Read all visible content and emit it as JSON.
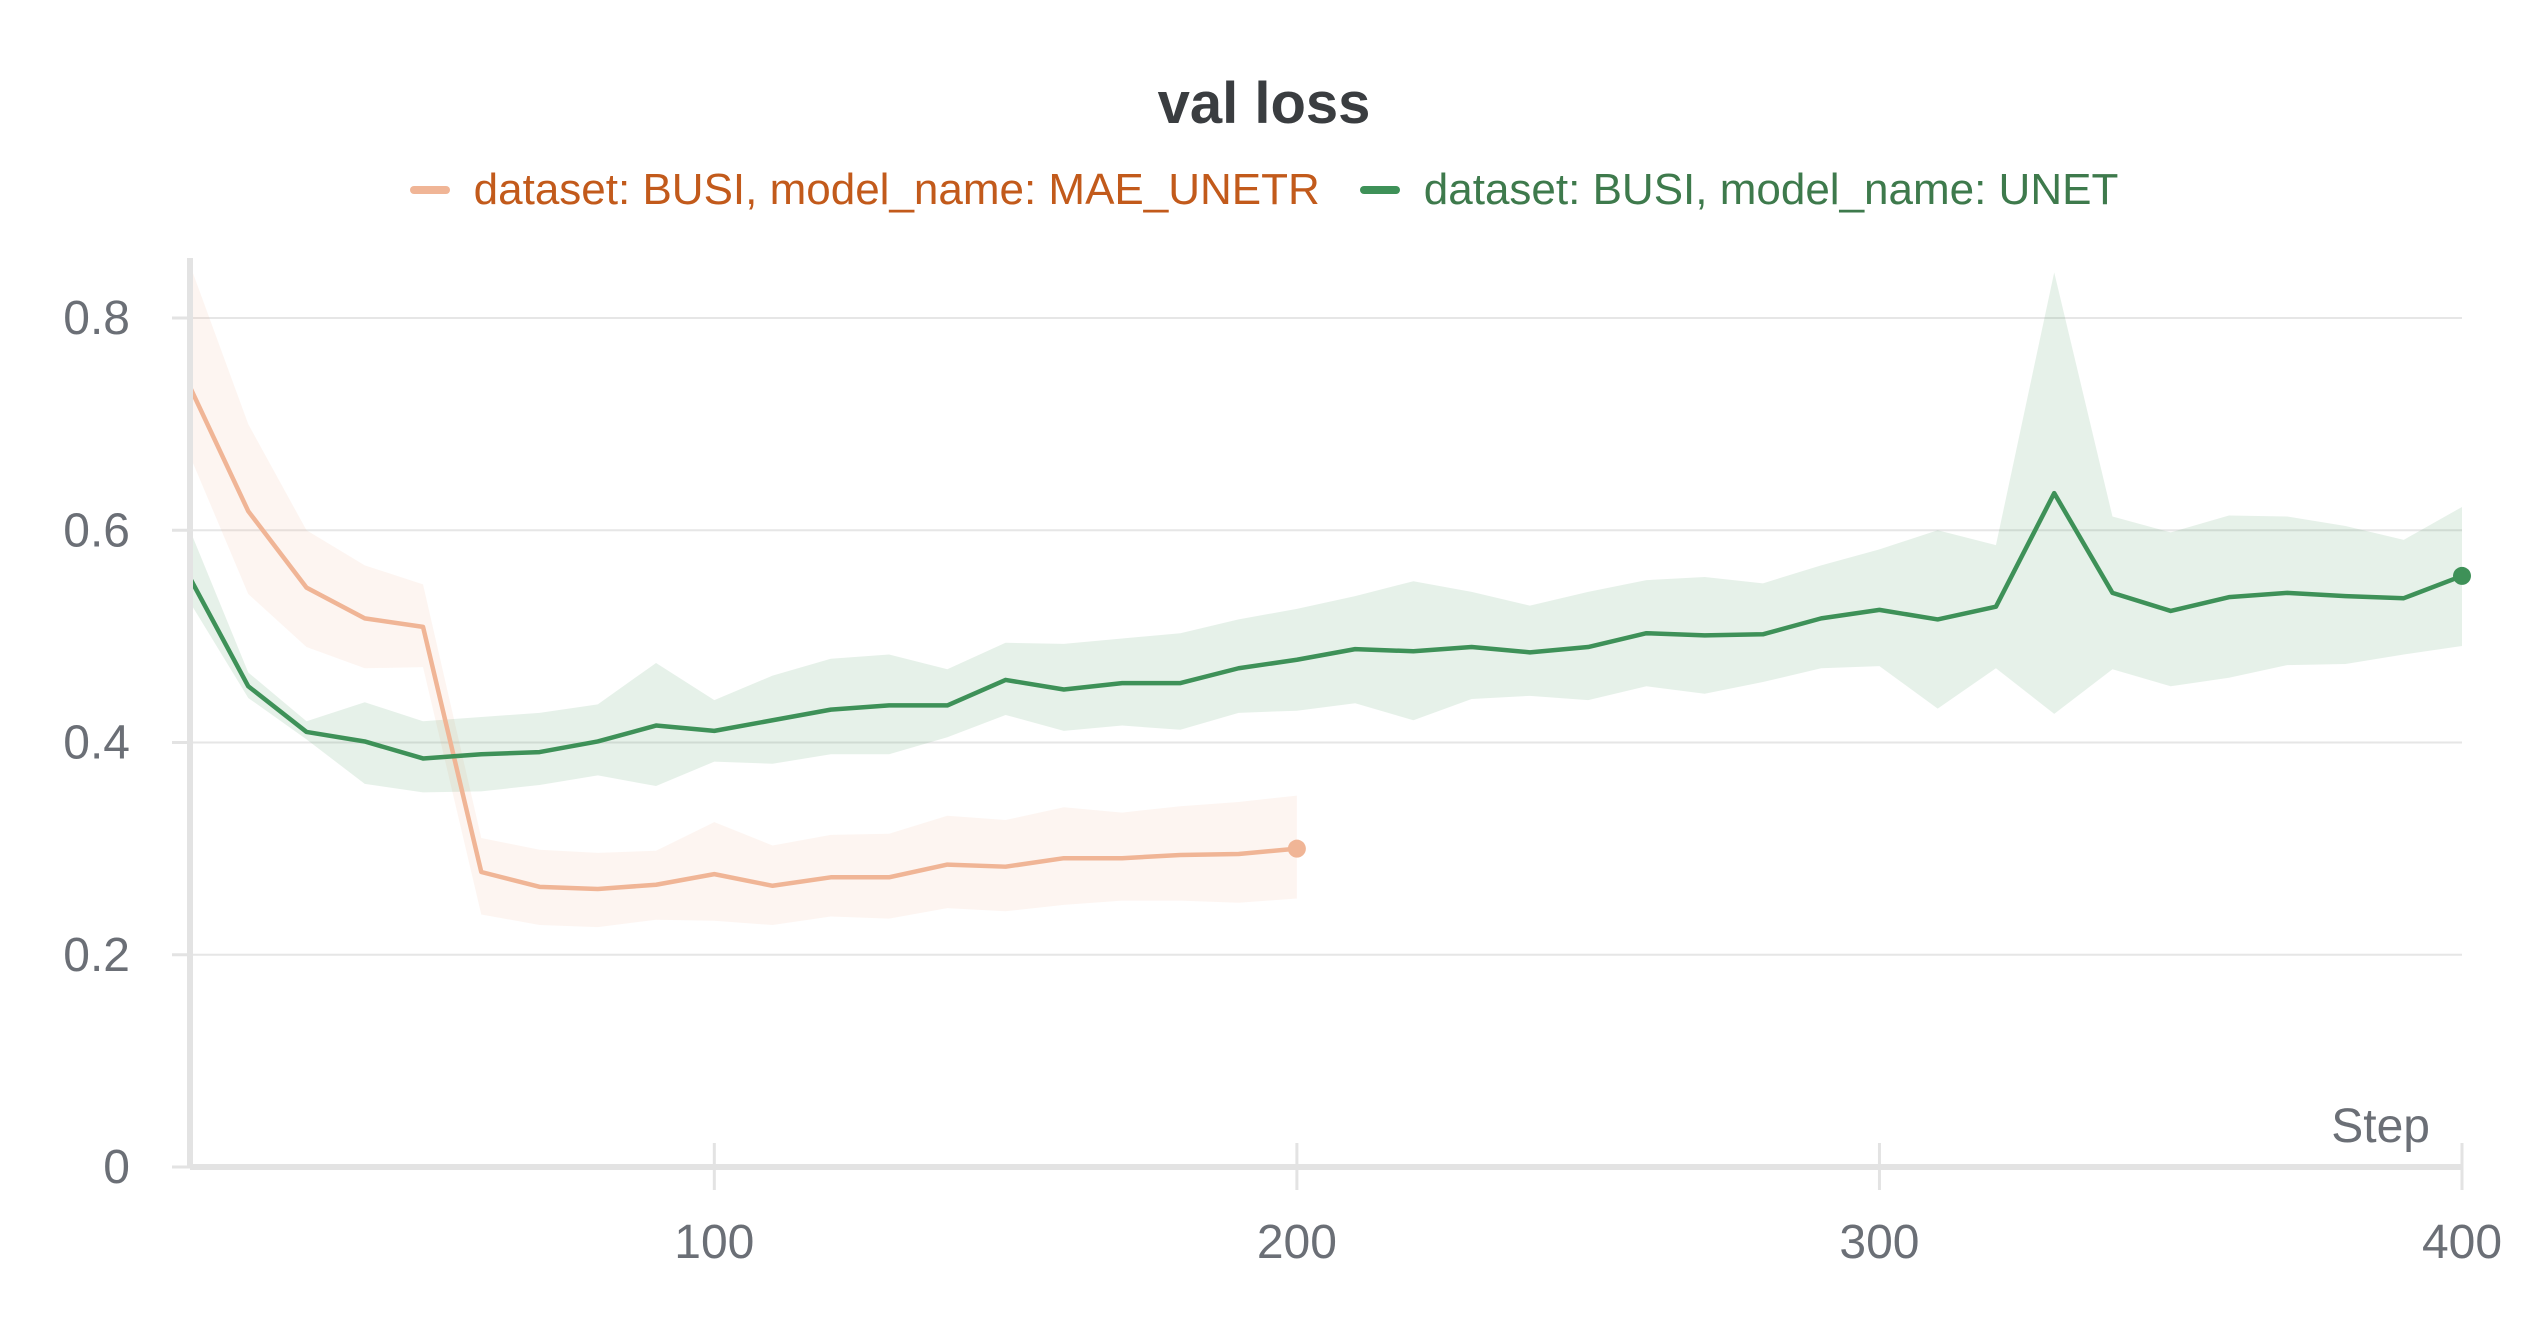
{
  "chart_data": {
    "type": "line",
    "title": "val loss",
    "xlabel": "Step",
    "ylabel": "",
    "xlim": [
      10,
      400
    ],
    "ylim": [
      0,
      0.85
    ],
    "x_ticks": [
      100,
      200,
      300,
      400
    ],
    "x_tick_labels": [
      "100",
      "200",
      "300",
      "400"
    ],
    "y_ticks": [
      0,
      0.2,
      0.4,
      0.6,
      0.8
    ],
    "y_tick_labels": [
      "0",
      "0.2",
      "0.4",
      "0.6",
      "0.8"
    ],
    "grid": true,
    "legend_position": "top-center",
    "series": [
      {
        "name": "dataset: BUSI, model_name: MAE_UNETR",
        "color": "#f0b596",
        "label_color": "#c25a1b",
        "x": [
          10,
          20,
          30,
          40,
          50,
          60,
          70,
          80,
          90,
          100,
          110,
          120,
          130,
          140,
          150,
          160,
          170,
          180,
          190,
          200
        ],
        "values": [
          0.735,
          0.618,
          0.546,
          0.517,
          0.509,
          0.278,
          0.264,
          0.262,
          0.266,
          0.276,
          0.265,
          0.273,
          0.273,
          0.285,
          0.283,
          0.291,
          0.291,
          0.294,
          0.295,
          0.3
        ],
        "band_upper": [
          0.85,
          0.7,
          0.6,
          0.567,
          0.549,
          0.31,
          0.299,
          0.296,
          0.298,
          0.325,
          0.303,
          0.313,
          0.314,
          0.331,
          0.327,
          0.339,
          0.334,
          0.34,
          0.344,
          0.35
        ],
        "band_lower": [
          0.67,
          0.54,
          0.49,
          0.47,
          0.471,
          0.238,
          0.228,
          0.226,
          0.233,
          0.232,
          0.228,
          0.236,
          0.234,
          0.244,
          0.241,
          0.247,
          0.251,
          0.251,
          0.249,
          0.253
        ]
      },
      {
        "name": "dataset: BUSI, model_name: UNET",
        "color": "#3e9158",
        "label_color": "#3e7a4c",
        "x": [
          10,
          20,
          30,
          40,
          50,
          60,
          70,
          80,
          90,
          100,
          110,
          120,
          130,
          140,
          150,
          160,
          170,
          180,
          190,
          200,
          210,
          220,
          230,
          240,
          250,
          260,
          270,
          280,
          290,
          300,
          310,
          320,
          330,
          340,
          350,
          360,
          370,
          380,
          390,
          400
        ],
        "values": [
          0.555,
          0.453,
          0.41,
          0.401,
          0.385,
          0.389,
          0.391,
          0.401,
          0.416,
          0.411,
          0.421,
          0.431,
          0.435,
          0.435,
          0.459,
          0.45,
          0.456,
          0.456,
          0.47,
          0.478,
          0.488,
          0.486,
          0.49,
          0.485,
          0.49,
          0.503,
          0.501,
          0.502,
          0.517,
          0.525,
          0.516,
          0.528,
          0.635,
          0.541,
          0.524,
          0.537,
          0.541,
          0.538,
          0.536,
          0.557
        ],
        "band_upper": [
          0.6,
          0.466,
          0.42,
          0.438,
          0.42,
          0.424,
          0.428,
          0.436,
          0.475,
          0.44,
          0.463,
          0.479,
          0.483,
          0.469,
          0.494,
          0.493,
          0.498,
          0.503,
          0.516,
          0.526,
          0.538,
          0.552,
          0.542,
          0.529,
          0.542,
          0.553,
          0.556,
          0.55,
          0.567,
          0.582,
          0.6,
          0.586,
          0.843,
          0.613,
          0.598,
          0.614,
          0.613,
          0.604,
          0.591,
          0.622
        ],
        "band_lower": [
          0.532,
          0.442,
          0.403,
          0.361,
          0.353,
          0.354,
          0.36,
          0.369,
          0.359,
          0.382,
          0.38,
          0.389,
          0.389,
          0.405,
          0.426,
          0.411,
          0.416,
          0.412,
          0.428,
          0.43,
          0.437,
          0.421,
          0.441,
          0.444,
          0.44,
          0.453,
          0.446,
          0.457,
          0.47,
          0.472,
          0.432,
          0.47,
          0.427,
          0.469,
          0.453,
          0.461,
          0.473,
          0.474,
          0.483,
          0.491
        ]
      }
    ]
  }
}
